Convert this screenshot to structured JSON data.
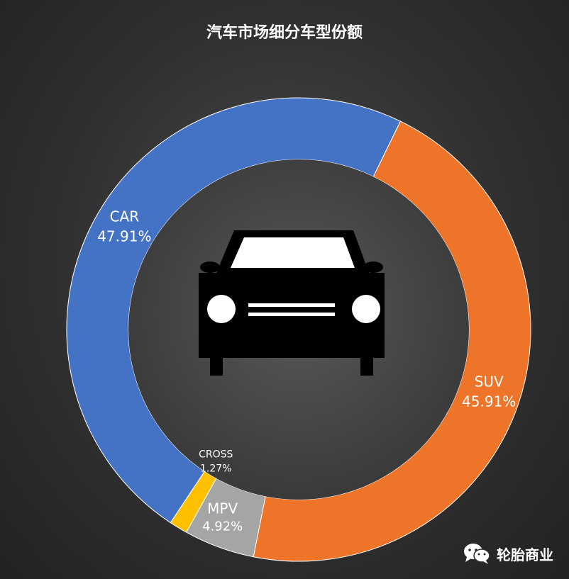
{
  "chart_data": {
    "type": "pie",
    "title": "汽车市场细分车型份额",
    "slices": [
      {
        "name": "SUV",
        "value": 45.91,
        "label": "45.91%",
        "color": "#ed7428"
      },
      {
        "name": "MPV",
        "value": 4.92,
        "label": "4.92%",
        "color": "#a5a5a5"
      },
      {
        "name": "CROSS",
        "value": 1.27,
        "label": "1.27%",
        "color": "#ffc000"
      },
      {
        "name": "CAR",
        "value": 47.91,
        "label": "47.91%",
        "color": "#4472c4"
      }
    ],
    "start_angle_deg": 26,
    "center_icon": "car-icon"
  },
  "watermark": {
    "text": "轮胎商业",
    "icon": "wechat-icon"
  }
}
